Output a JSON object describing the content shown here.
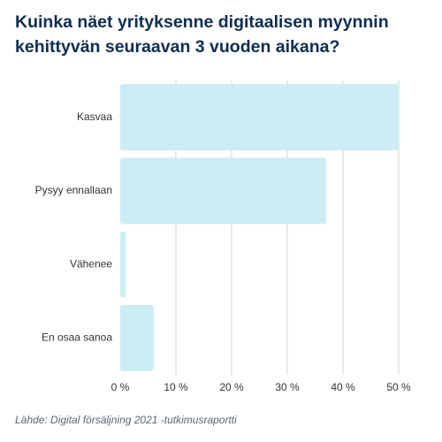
{
  "title_lines": [
    "Kuinka näet yrityksenne digitaalisen myynnin",
    "kehittyvän seuraavan 3 vuoden aikana?"
  ],
  "source": "Lähde: Digital försäljning 2021 -tutkimusraportti",
  "colors": {
    "bar": "#ccedf3",
    "grid": "#cfd3d6",
    "axis_text": "#333333",
    "title": "#0f2d52"
  },
  "chart_data": {
    "type": "bar",
    "orientation": "horizontal",
    "categories": [
      "Kasvaa",
      "Pysyy ennallaan",
      "Vähenee",
      "En osaa sanoa"
    ],
    "values": [
      50,
      37,
      1,
      6
    ],
    "xlim": [
      0,
      50
    ],
    "xticks": [
      0,
      10,
      20,
      30,
      40,
      50
    ],
    "tick_labels": [
      "0 %",
      "10 %",
      "20 %",
      "30 %",
      "40 %",
      "50 %"
    ],
    "grid": true,
    "xlabel": "",
    "ylabel": ""
  }
}
